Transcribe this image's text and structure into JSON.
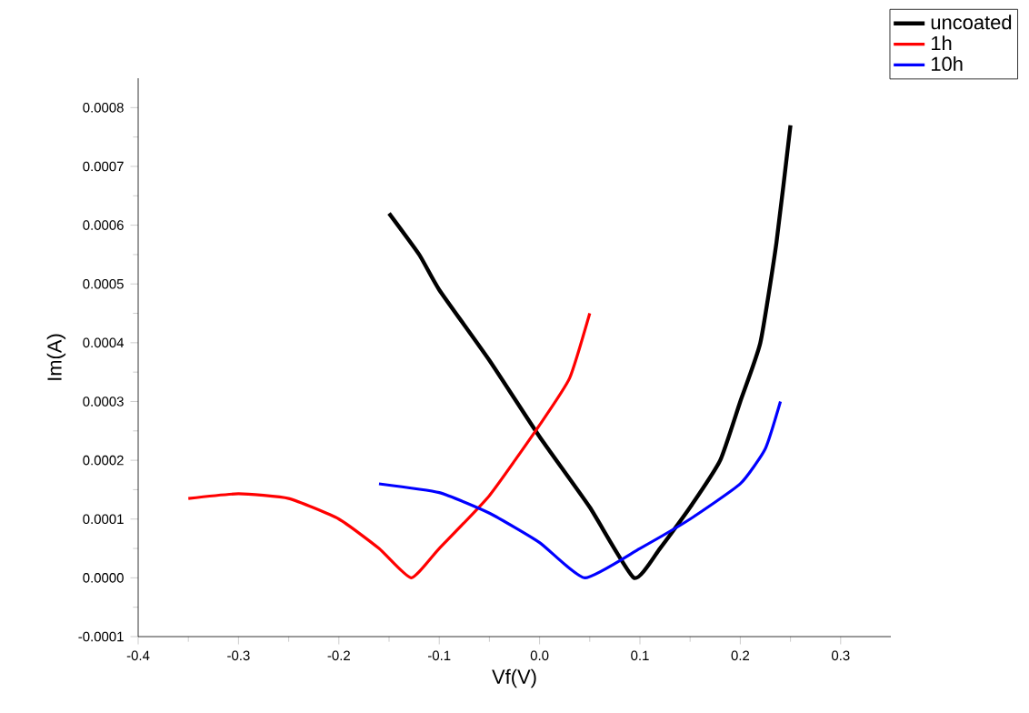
{
  "chart_data": {
    "type": "line",
    "xlabel": "Vf(V)",
    "ylabel": "Im(A)",
    "series": [
      {
        "name": "uncoated",
        "color": "#000000",
        "x": [
          -0.15,
          -0.12,
          -0.1,
          -0.05,
          0,
          0.05,
          0.094,
          0.12,
          0.15,
          0.18,
          0.2,
          0.22,
          0.236,
          0.25
        ],
        "values": [
          0.00062,
          0.00055,
          0.00049,
          0.00037,
          0.00024,
          0.00012,
          0.0,
          5e-05,
          0.00012,
          0.0002,
          0.0003,
          0.0004,
          0.00057,
          0.00077
        ]
      },
      {
        "name": "1h",
        "color": "#ff0000",
        "x": [
          -0.35,
          -0.3,
          -0.25,
          -0.2,
          -0.16,
          -0.128,
          -0.1,
          -0.05,
          0,
          0.03,
          0.05
        ],
        "values": [
          0.000135,
          0.000143,
          0.000135,
          0.0001,
          5e-05,
          0.0,
          5e-05,
          0.00014,
          0.00026,
          0.00034,
          0.00045
        ]
      },
      {
        "name": "10h",
        "color": "#0000ff",
        "x": [
          -0.16,
          -0.1,
          -0.05,
          0,
          0.045,
          0.1,
          0.15,
          0.2,
          0.225,
          0.24
        ],
        "values": [
          0.00016,
          0.000145,
          0.00011,
          6e-05,
          0.0,
          5e-05,
          0.0001,
          0.00016,
          0.00022,
          0.0003
        ]
      }
    ],
    "xlim": [
      -0.4,
      0.35
    ],
    "ylim": [
      -0.0001,
      0.00085
    ],
    "xticks": [
      {
        "value": -0.4,
        "label": "-0.4"
      },
      {
        "value": -0.3,
        "label": "-0.3"
      },
      {
        "value": -0.2,
        "label": "-0.2"
      },
      {
        "value": -0.1,
        "label": "-0.1"
      },
      {
        "value": 0,
        "label": "0.0"
      },
      {
        "value": 0.1,
        "label": "0.1"
      },
      {
        "value": 0.2,
        "label": "0.2"
      },
      {
        "value": 0.3,
        "label": "0.3"
      }
    ],
    "yticks": [
      {
        "value": -0.0001,
        "label": "-0.0001"
      },
      {
        "value": 0,
        "label": "0.0000"
      },
      {
        "value": 0.0001,
        "label": "0.0001"
      },
      {
        "value": 0.0002,
        "label": "0.0002"
      },
      {
        "value": 0.0003,
        "label": "0.0003"
      },
      {
        "value": 0.0004,
        "label": "0.0004"
      },
      {
        "value": 0.0005,
        "label": "0.0005"
      },
      {
        "value": 0.0006,
        "label": "0.0006"
      },
      {
        "value": 0.0007,
        "label": "0.0007"
      },
      {
        "value": 0.0008,
        "label": "0.0008"
      }
    ],
    "legend": "top right"
  }
}
